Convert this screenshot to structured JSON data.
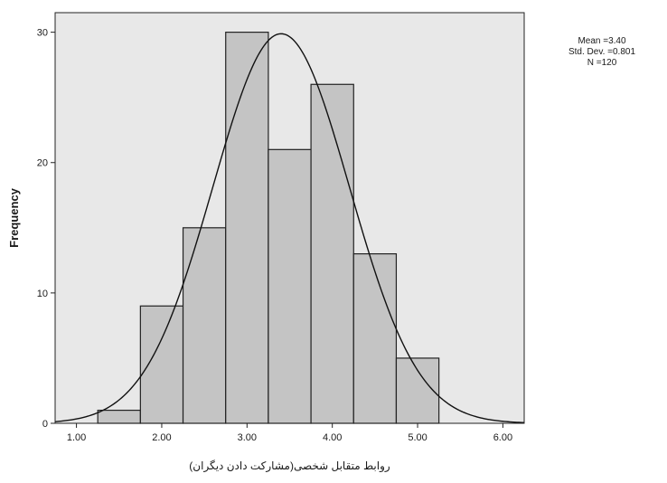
{
  "chart_data": {
    "type": "bar",
    "title": "",
    "xlabel": "روابط متقابل شخصی(مشارکت دادن دیگران)",
    "ylabel": "Frequency",
    "bins": [
      {
        "x0": 1.25,
        "x1": 1.75,
        "count": 1
      },
      {
        "x0": 1.75,
        "x1": 2.25,
        "count": 9
      },
      {
        "x0": 2.25,
        "x1": 2.75,
        "count": 15
      },
      {
        "x0": 2.75,
        "x1": 3.25,
        "count": 30
      },
      {
        "x0": 3.25,
        "x1": 3.75,
        "count": 21
      },
      {
        "x0": 3.75,
        "x1": 4.25,
        "count": 26
      },
      {
        "x0": 4.25,
        "x1": 4.75,
        "count": 13
      },
      {
        "x0": 4.75,
        "x1": 5.25,
        "count": 5
      }
    ],
    "xticks": [
      1,
      2,
      3,
      4,
      5,
      6
    ],
    "xtick_labels": [
      "1.00",
      "2.00",
      "3.00",
      "4.00",
      "5.00",
      "6.00"
    ],
    "yticks": [
      0,
      10,
      20,
      30
    ],
    "ytick_labels": [
      "0",
      "10",
      "20",
      "30"
    ],
    "xlim": [
      0.75,
      6.25
    ],
    "ylim": [
      0,
      31.5
    ],
    "normal_curve": {
      "mean": 3.4,
      "sd": 0.801,
      "n": 120,
      "bin_width": 0.5
    },
    "grid": false,
    "stats_box": {
      "placement": "top-right",
      "lines": [
        "Mean =3.40",
        "Std. Dev. =0.801",
        "N =120"
      ]
    },
    "colors": {
      "plot_background": "#e8e8e8",
      "bar_fill": "#c4c4c4",
      "bar_stroke": "#222222",
      "curve": "#111111",
      "axis": "#222222"
    }
  }
}
